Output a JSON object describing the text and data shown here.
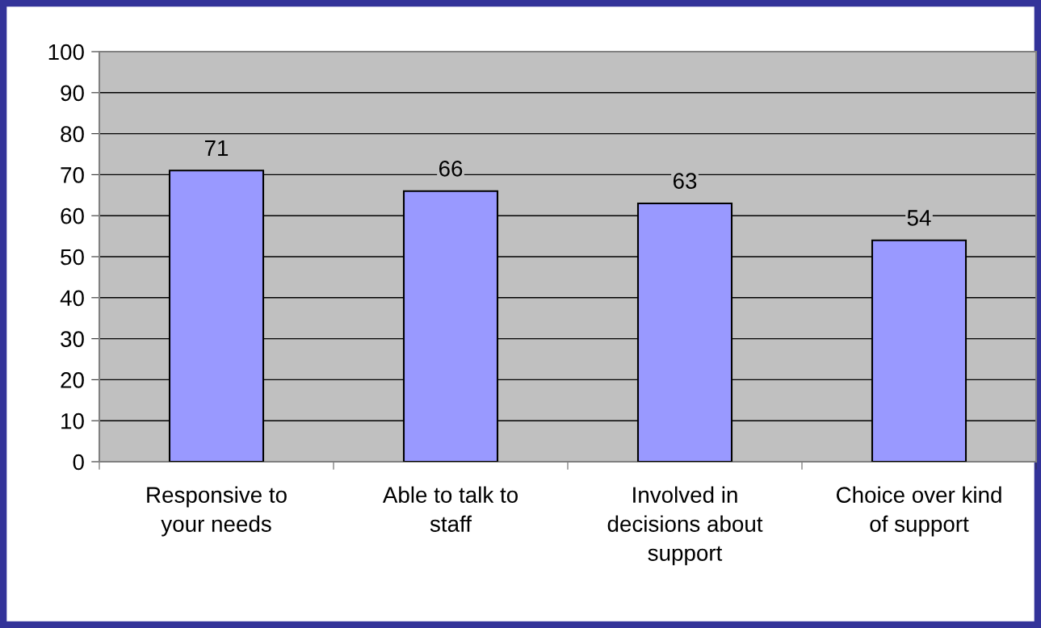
{
  "chart_data": {
    "type": "bar",
    "categories": [
      "Responsive to\nyour needs",
      "Able to talk to\nstaff",
      "Involved in\ndecisions about\nsupport",
      "Choice over kind\nof support"
    ],
    "values": [
      71,
      66,
      63,
      54
    ],
    "color": "#9999ff",
    "ylim": [
      0,
      100
    ],
    "yticks": [
      0,
      10,
      20,
      30,
      40,
      50,
      60,
      70,
      80,
      90,
      100
    ],
    "grid": "y",
    "data_labels": true,
    "legend": false
  }
}
